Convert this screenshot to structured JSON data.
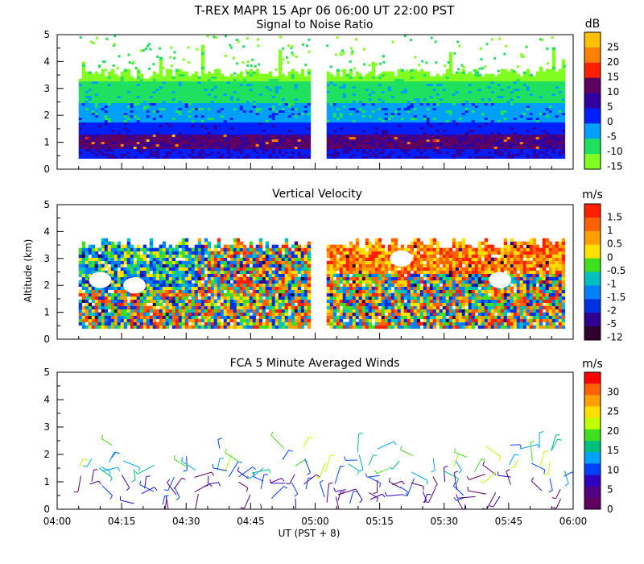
{
  "figure": {
    "title": "T-REX  MAPR 15 Apr 06  06:00 UT  22:00  PST",
    "xlabel": "UT  (PST + 8)",
    "ylabel": "Altitude (km)",
    "x_ticks": [
      "04:00",
      "04:15",
      "04:30",
      "04:45",
      "05:00",
      "05:15",
      "05:30",
      "05:45",
      "06:00"
    ]
  },
  "chart_data": [
    {
      "type": "heatmap",
      "title": "Signal to Noise Ratio",
      "xlabel": "UT  (PST + 8)",
      "ylabel": "Altitude (km)",
      "ylim": [
        0,
        5
      ],
      "y_ticks": [
        "0",
        "1",
        "2",
        "3",
        "4",
        "5"
      ],
      "x_range": [
        "04:00",
        "06:00"
      ],
      "data_gap": [
        "04:59",
        "05:02"
      ],
      "colorbar": {
        "unit": "dB",
        "labels": [
          "25",
          "20",
          "15",
          "10",
          "5",
          "0",
          "-5",
          "-10",
          "-15"
        ],
        "colors": [
          "#ffc000",
          "#ff8000",
          "#ff2000",
          "#600060",
          "#3000a0",
          "#0020ff",
          "#00a0ff",
          "#20e060",
          "#80ff20"
        ]
      },
      "bands": [
        {
          "range": [
            0.4,
            0.9
          ],
          "value_db": 0
        },
        {
          "range": [
            0.9,
            1.2
          ],
          "value_db": 5
        },
        {
          "range": [
            1.2,
            1.7
          ],
          "value_db": 0
        },
        {
          "range": [
            1.7,
            2.3
          ],
          "value_db": -5
        },
        {
          "range": [
            2.3,
            3.4
          ],
          "value_db": -10
        },
        {
          "range": [
            3.4,
            4.5
          ],
          "value_db": -15
        }
      ]
    },
    {
      "type": "heatmap",
      "title": "Vertical Velocity",
      "xlabel": "UT  (PST + 8)",
      "ylabel": "Altitude (km)",
      "ylim": [
        0,
        5
      ],
      "y_ticks": [
        "0",
        "1",
        "2",
        "3",
        "4",
        "5"
      ],
      "x_range": [
        "04:00",
        "06:00"
      ],
      "data_gap": [
        "04:59",
        "05:02"
      ],
      "colorbar": {
        "unit": "m/s",
        "labels": [
          "1.5",
          "1",
          "0.5",
          "0",
          "-0.5",
          "-1",
          "-1.5",
          "-2",
          "-5",
          "-12"
        ],
        "colors": [
          "#ff2000",
          "#ff6000",
          "#ffa000",
          "#ffe000",
          "#40e020",
          "#00c0c0",
          "#0080ff",
          "#0030e0",
          "#300090",
          "#300030"
        ]
      },
      "observations": [
        "Mostly upward motion (0.5 to 1.5 m/s) at 2.5-3.5 km after 05:05",
        "Mixed up/down motion below 2.5 km throughout"
      ]
    },
    {
      "type": "scatter",
      "title": "FCA 5 Minute Averaged Winds",
      "xlabel": "UT  (PST + 8)",
      "ylabel": "Altitude (km)",
      "ylim": [
        0,
        5
      ],
      "y_ticks": [
        "0",
        "1",
        "2",
        "3",
        "4",
        "5"
      ],
      "x_range": [
        "04:00",
        "06:00"
      ],
      "marker": "wind barb",
      "altitude_range_km": [
        0.1,
        2.4
      ],
      "colorbar": {
        "unit": "m/s",
        "labels": [
          "30",
          "25",
          "20",
          "15",
          "10",
          "5",
          "0"
        ],
        "colors": [
          "#ff0000",
          "#ff6000",
          "#ffa000",
          "#ffe000",
          "#c0ff00",
          "#40e020",
          "#00c080",
          "#00a0ff",
          "#0040ff",
          "#3000c0",
          "#500080",
          "#600060"
        ]
      }
    }
  ]
}
